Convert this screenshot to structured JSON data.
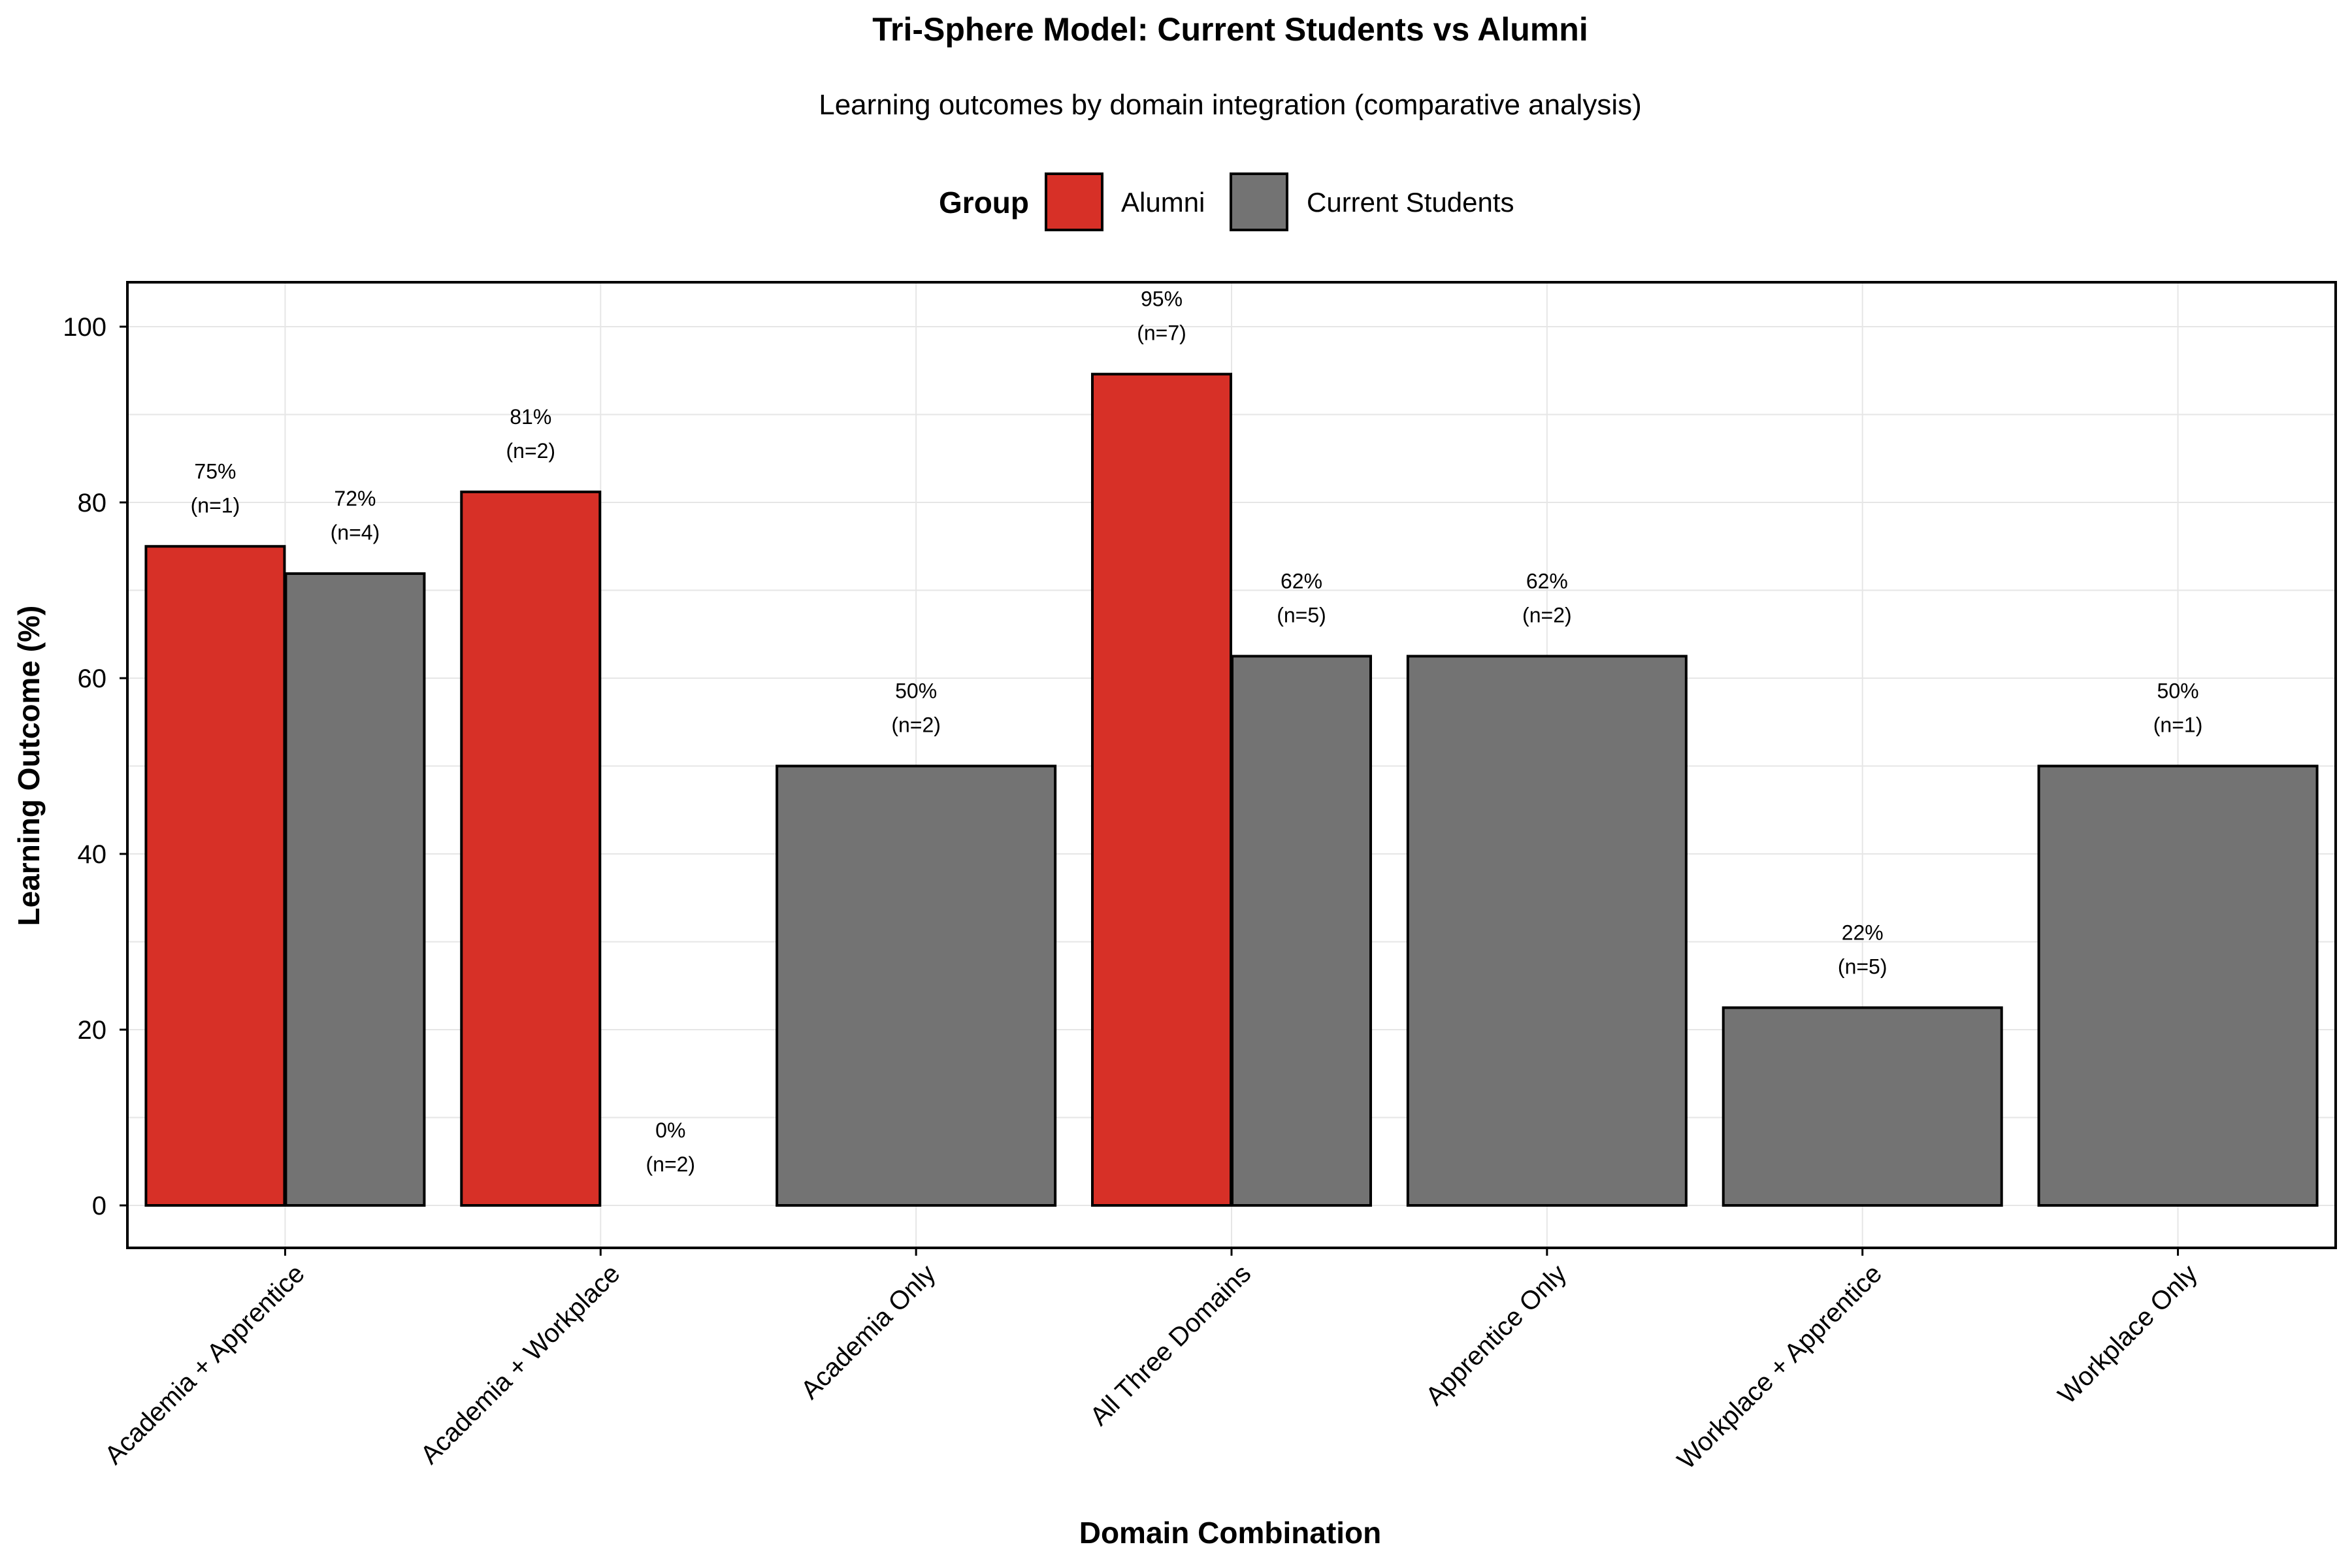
{
  "chart_data": {
    "type": "bar",
    "title": "Tri-Sphere Model: Current Students vs Alumni",
    "subtitle": "Learning outcomes by domain integration (comparative analysis)",
    "xlabel": "Domain Combination",
    "ylabel": "Learning Outcome (%)",
    "ylim": [
      0,
      105
    ],
    "yticks": [
      0,
      20,
      40,
      60,
      80,
      100
    ],
    "grid": true,
    "legend": {
      "title": "Group",
      "placement": "top",
      "entries": [
        "Alumni",
        "Current Students"
      ]
    },
    "colors": {
      "Alumni": "#d73027",
      "Current Students": "#737373"
    },
    "categories": [
      "Academia + Apprentice",
      "Academia + Workplace",
      "Academia Only",
      "All Three Domains",
      "Apprentice Only",
      "Workplace + Apprentice",
      "Workplace Only"
    ],
    "bars": [
      {
        "category": "Academia + Apprentice",
        "group": "Alumni",
        "value": 75,
        "label": "75%",
        "n": "(n=1)"
      },
      {
        "category": "Academia + Apprentice",
        "group": "Current Students",
        "value": 71.9,
        "label": "72%",
        "n": "(n=4)"
      },
      {
        "category": "Academia + Workplace",
        "group": "Alumni",
        "value": 81.2,
        "label": "81%",
        "n": "(n=2)"
      },
      {
        "category": "Academia + Workplace",
        "group": "Current Students",
        "value": 0,
        "label": "0%",
        "n": "(n=2)"
      },
      {
        "category": "Academia Only",
        "group": "Current Students",
        "value": 50,
        "label": "50%",
        "n": "(n=2)"
      },
      {
        "category": "All Three Domains",
        "group": "Alumni",
        "value": 94.6,
        "label": "95%",
        "n": "(n=7)"
      },
      {
        "category": "All Three Domains",
        "group": "Current Students",
        "value": 62.5,
        "label": "62%",
        "n": "(n=5)"
      },
      {
        "category": "Apprentice Only",
        "group": "Current Students",
        "value": 62.5,
        "label": "62%",
        "n": "(n=2)"
      },
      {
        "category": "Workplace + Apprentice",
        "group": "Current Students",
        "value": 22.5,
        "label": "22%",
        "n": "(n=5)"
      },
      {
        "category": "Workplace Only",
        "group": "Current Students",
        "value": 50,
        "label": "50%",
        "n": "(n=1)"
      }
    ]
  }
}
